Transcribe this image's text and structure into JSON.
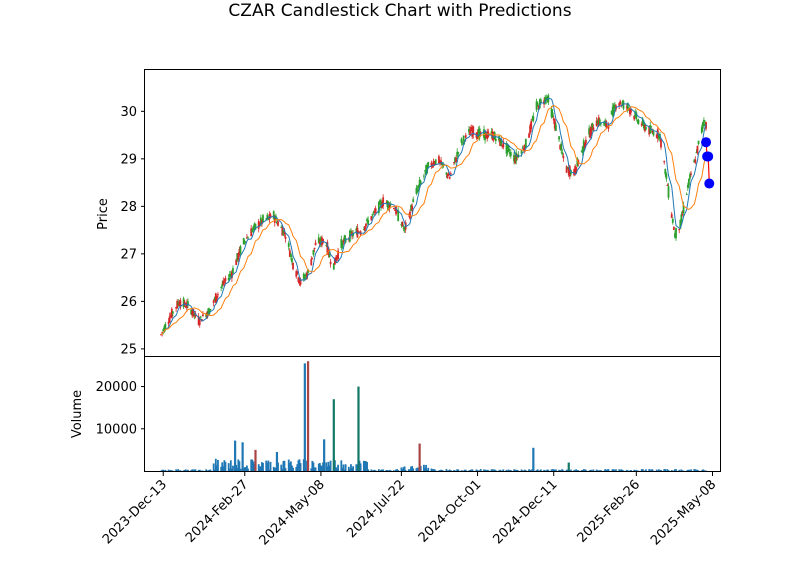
{
  "title": "CZAR Candlestick Chart with Predictions",
  "colors": {
    "up": "#2ca02c",
    "down": "#d62728",
    "ma_short": "#1f77b4",
    "ma_long": "#ff7f0e",
    "prediction": "#0000ff",
    "prediction_line": "#ff0000",
    "volume_up": "#1f77b4",
    "volume_green": "#117766",
    "volume_red": "#aa4444"
  },
  "chart_data": [
    {
      "type": "candlestick",
      "ylabel": "Price",
      "ylim": [
        24.85,
        30.87
      ],
      "yticks": [
        25,
        26,
        27,
        28,
        29,
        30
      ],
      "grid": false,
      "price_anchors": [
        [
          "2023-12-11",
          25.3
        ],
        [
          "2023-12-20",
          25.7
        ],
        [
          "2023-12-28",
          26.0
        ],
        [
          "2024-01-05",
          25.9
        ],
        [
          "2024-01-15",
          25.6
        ],
        [
          "2024-01-25",
          25.8
        ],
        [
          "2024-02-05",
          26.3
        ],
        [
          "2024-02-15",
          26.6
        ],
        [
          "2024-02-25",
          27.2
        ],
        [
          "2024-03-05",
          27.5
        ],
        [
          "2024-03-15",
          27.7
        ],
        [
          "2024-03-25",
          27.8
        ],
        [
          "2024-04-05",
          27.4
        ],
        [
          "2024-04-12",
          26.8
        ],
        [
          "2024-04-19",
          26.4
        ],
        [
          "2024-04-26",
          26.6
        ],
        [
          "2024-05-03",
          27.2
        ],
        [
          "2024-05-12",
          27.3
        ],
        [
          "2024-05-19",
          26.7
        ],
        [
          "2024-05-27",
          27.2
        ],
        [
          "2024-06-05",
          27.4
        ],
        [
          "2024-06-15",
          27.5
        ],
        [
          "2024-06-25",
          27.8
        ],
        [
          "2024-07-05",
          28.1
        ],
        [
          "2024-07-15",
          28.0
        ],
        [
          "2024-07-25",
          27.5
        ],
        [
          "2024-08-05",
          28.3
        ],
        [
          "2024-08-15",
          28.8
        ],
        [
          "2024-08-25",
          29.0
        ],
        [
          "2024-09-05",
          28.6
        ],
        [
          "2024-09-15",
          29.3
        ],
        [
          "2024-09-25",
          29.6
        ],
        [
          "2024-10-05",
          29.5
        ],
        [
          "2024-10-15",
          29.5
        ],
        [
          "2024-10-25",
          29.3
        ],
        [
          "2024-11-05",
          29.0
        ],
        [
          "2024-11-15",
          29.3
        ],
        [
          "2024-11-25",
          30.1
        ],
        [
          "2024-12-05",
          30.3
        ],
        [
          "2024-12-15",
          29.5
        ],
        [
          "2024-12-22",
          28.8
        ],
        [
          "2024-12-30",
          28.7
        ],
        [
          "2025-01-10",
          29.4
        ],
        [
          "2025-01-20",
          29.8
        ],
        [
          "2025-01-30",
          29.7
        ],
        [
          "2025-02-08",
          30.2
        ],
        [
          "2025-02-18",
          30.1
        ],
        [
          "2025-02-28",
          29.8
        ],
        [
          "2025-03-10",
          29.6
        ],
        [
          "2025-03-20",
          29.5
        ],
        [
          "2025-03-28",
          28.3
        ],
        [
          "2025-04-03",
          27.4
        ],
        [
          "2025-04-08",
          27.6
        ],
        [
          "2025-04-15",
          28.4
        ],
        [
          "2025-04-22",
          29.0
        ],
        [
          "2025-04-30",
          29.8
        ],
        [
          "2025-05-02",
          29.7
        ]
      ],
      "ma_short_window": 5,
      "ma_long_window": 15,
      "predictions": {
        "x": [
          "2025-05-02",
          "2025-05-03",
          "2025-05-04",
          "2025-05-05"
        ],
        "y": [
          29.35,
          29.05,
          29.05,
          28.48
        ]
      }
    },
    {
      "type": "bar",
      "ylabel": "Volume",
      "ylim": [
        0,
        27000
      ],
      "yticks": [
        10000,
        20000
      ],
      "volume_spikes": [
        [
          "2024-04-23",
          25500,
          "volume_up"
        ],
        [
          "2024-04-26",
          26000,
          "volume_red"
        ],
        [
          "2024-05-20",
          17000,
          "volume_green"
        ],
        [
          "2024-06-12",
          20000,
          "volume_green"
        ],
        [
          "2024-02-18",
          7200,
          "volume_up"
        ],
        [
          "2024-02-25",
          6800,
          "volume_up"
        ],
        [
          "2024-03-08",
          5000,
          "volume_red"
        ],
        [
          "2024-03-28",
          4500,
          "volume_up"
        ],
        [
          "2024-05-11",
          7500,
          "volume_up"
        ],
        [
          "2024-08-08",
          6500,
          "volume_red"
        ],
        [
          "2024-11-22",
          5500,
          "volume_up"
        ],
        [
          "2024-12-25",
          2000,
          "volume_green"
        ]
      ],
      "xticks": [
        "2023-Dec-13",
        "2024-Feb-27",
        "2024-May-08",
        "2024-Jul-22",
        "2024-Oct-01",
        "2024-Dec-11",
        "2025-Feb-26",
        "2025-May-08"
      ]
    }
  ]
}
